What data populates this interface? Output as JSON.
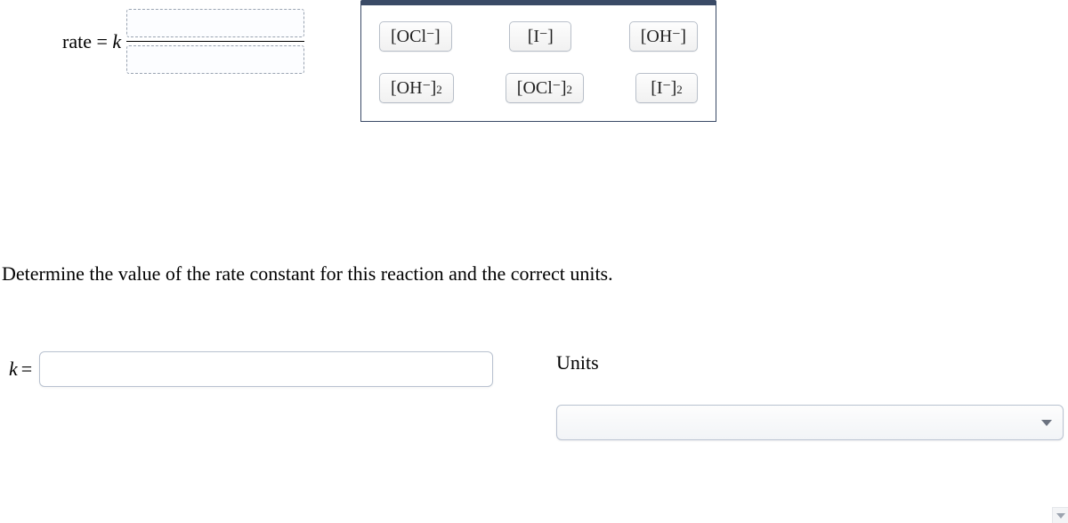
{
  "rate_expression": {
    "prefix": "rate = ",
    "k": "k"
  },
  "bank": {
    "row1": [
      {
        "open": "[",
        "sym": "OCl",
        "sup": "−",
        "close": "]",
        "sq": false
      },
      {
        "open": "[",
        "sym": "I",
        "sup": "−",
        "close": "]",
        "sq": false
      },
      {
        "open": "[",
        "sym": "OH",
        "sup": "−",
        "close": "]",
        "sq": false
      }
    ],
    "row2": [
      {
        "open": "[",
        "sym": "OH",
        "sup": "−",
        "close": "]",
        "sq": true
      },
      {
        "open": "[",
        "sym": "OCl",
        "sup": "−",
        "close": "]",
        "sq": true
      },
      {
        "open": "[",
        "sym": "I",
        "sup": "−",
        "close": "]",
        "sq": true
      }
    ]
  },
  "question_text": "Determine the value of the rate constant for this reaction and the correct units.",
  "k_label": "k",
  "equals": "=",
  "units_label": "Units",
  "colors": {
    "panel_border": "#3a4a66",
    "tile_border": "#b8bfc9",
    "drop_dash": "#9aa4b2",
    "input_border": "#b9c2d0"
  }
}
